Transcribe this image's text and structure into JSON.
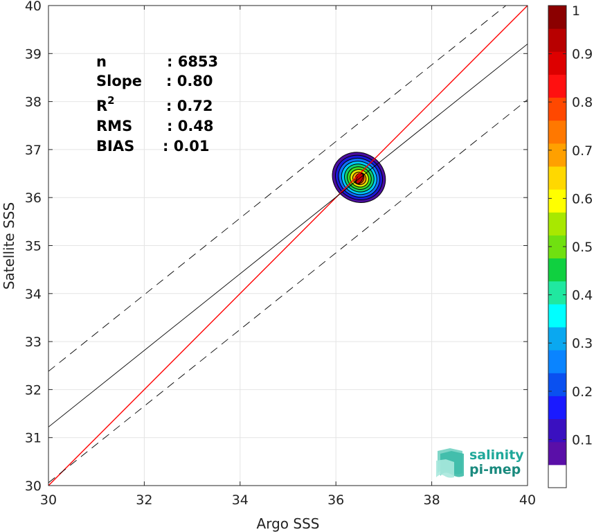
{
  "chart_data": {
    "type": "scatter",
    "subtype": "density-contour",
    "xlabel": "Argo SSS",
    "ylabel": "Satellite SSS",
    "xlim": [
      30,
      40
    ],
    "ylim": [
      30,
      40
    ],
    "x_ticks": [
      30,
      32,
      34,
      36,
      38,
      40
    ],
    "y_ticks": [
      30,
      31,
      32,
      33,
      34,
      35,
      36,
      37,
      38,
      39,
      40
    ],
    "grid": true,
    "stats": [
      {
        "label": "n",
        "value": ": 6853"
      },
      {
        "label": "Slope",
        "value": ": 0.80"
      },
      {
        "label": "R",
        "sup": "2",
        "value": ": 0.72"
      },
      {
        "label": "RMS",
        "value": ": 0.48"
      },
      {
        "label": "BIAS",
        "value": ": 0.01"
      }
    ],
    "lines": [
      {
        "role": "identity",
        "color": "#ff0000",
        "style": "solid",
        "x": [
          30,
          40
        ],
        "y": [
          30,
          40
        ]
      },
      {
        "role": "regression",
        "color": "#000000",
        "style": "solid",
        "x": [
          30,
          40
        ],
        "y": [
          31.22,
          39.2
        ]
      },
      {
        "role": "upper-bound",
        "color": "#000000",
        "style": "dashed",
        "x": [
          30,
          40
        ],
        "y": [
          32.38,
          40.36
        ]
      },
      {
        "role": "lower-bound",
        "color": "#000000",
        "style": "dashed",
        "x": [
          30,
          40
        ],
        "y": [
          30.06,
          38.04
        ]
      }
    ],
    "density": {
      "center": [
        36.48,
        36.42
      ],
      "outer_extent": {
        "x": [
          35.65,
          37.1
        ],
        "y": [
          35.5,
          37.15
        ]
      },
      "levels": [
        0.05,
        0.1,
        0.2,
        0.3,
        0.4,
        0.5,
        0.6,
        0.7,
        0.8,
        0.9
      ],
      "level_colors": [
        "#4b0fa0",
        "#1a1ad8",
        "#1070ff",
        "#00c8ff",
        "#10d070",
        "#40dc20",
        "#e8e800",
        "#ff9a00",
        "#ff3000",
        "#cc0000"
      ]
    },
    "colorbar": {
      "ticks": [
        0.1,
        0.2,
        0.3,
        0.4,
        0.5,
        0.6,
        0.7,
        0.8,
        0.9,
        1
      ],
      "tick_labels": [
        "0.1",
        "0.2",
        "0.3",
        "0.4",
        "0.5",
        "0.6",
        "0.7",
        "0.8",
        "0.9",
        "1"
      ],
      "colors": [
        "#ffffff",
        "#5a0fa8",
        "#3a10c0",
        "#1a1aff",
        "#0a50f0",
        "#0a84ff",
        "#0aa8f0",
        "#00ffff",
        "#20e8a0",
        "#10d040",
        "#70e010",
        "#a8e800",
        "#ffff00",
        "#ffd800",
        "#ffa000",
        "#ff7800",
        "#ff4800",
        "#ff1010",
        "#dd0000",
        "#b80000",
        "#8b0000"
      ]
    }
  },
  "logo": {
    "line1": "salinity",
    "line2": "pi-mep",
    "color": "#1fa89a"
  }
}
